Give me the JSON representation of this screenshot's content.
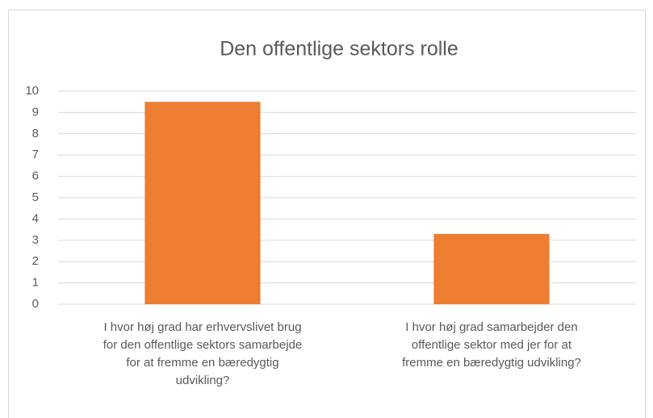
{
  "chart_data": {
    "type": "bar",
    "title": "Den offentlige sektors rolle",
    "categories": [
      "I hvor høj grad har erhvervslivet brug for den offentlige sektors samarbejde for at fremme en bæredygtig udvikling?",
      "I hvor høj grad samarbejder den offentlige sektor med jer for at fremme en bæredygtig udvikling?"
    ],
    "values": [
      9.5,
      3.3
    ],
    "color": "#ed7d31",
    "ylim": [
      0,
      10
    ],
    "yticks": [
      0,
      1,
      2,
      3,
      4,
      5,
      6,
      7,
      8,
      9,
      10
    ],
    "grid": true
  }
}
